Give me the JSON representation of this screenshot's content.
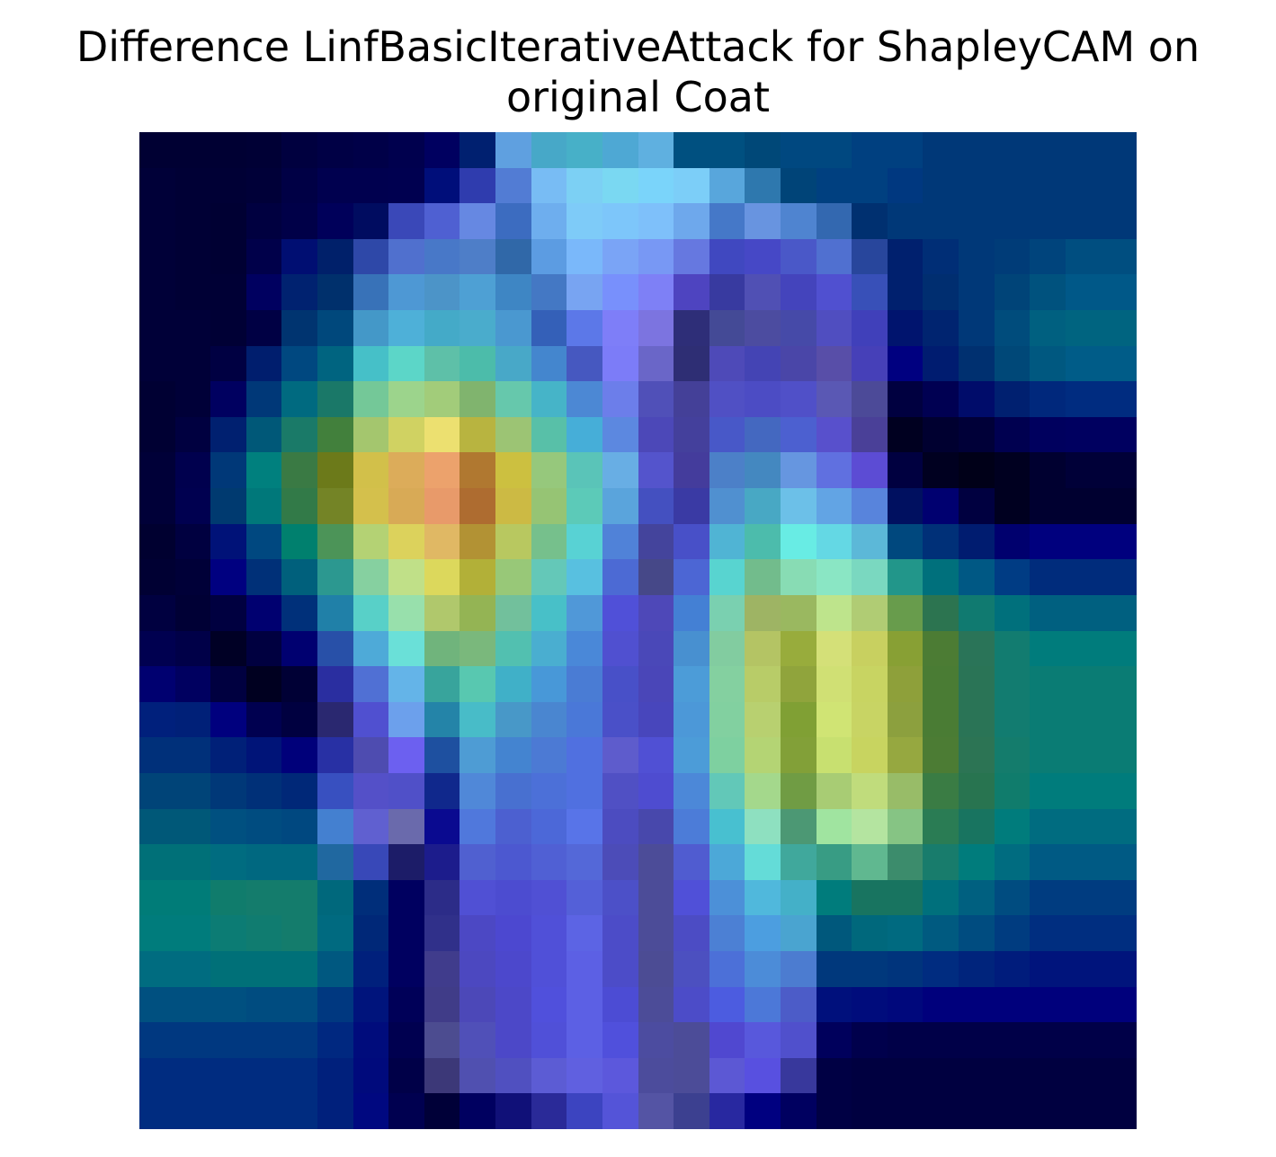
{
  "chart_data": {
    "type": "heatmap",
    "title_lines": [
      "Difference LinfBasicIterativeAttack for ShapleyCAM on",
      "original Coat"
    ],
    "axes_visible": false,
    "rows": 28,
    "cols": 28,
    "cell_colors": [
      [
        "#000033",
        "#000033",
        "#000033",
        "#000035",
        "#00003f",
        "#000045",
        "#000048",
        "#00004e",
        "#000060",
        "#002070",
        "#5fa0e0",
        "#47a8c8",
        "#47b0c8",
        "#4ea8d4",
        "#5fb0e0",
        "#005080",
        "#005080",
        "#004878",
        "#004880",
        "#004880",
        "#004080",
        "#004080",
        "#003878",
        "#003878",
        "#003878",
        "#003878",
        "#003878",
        "#003878"
      ],
      [
        "#000038",
        "#000035",
        "#000035",
        "#000038",
        "#000045",
        "#00004f",
        "#00004f",
        "#000050",
        "#000e7a",
        "#2f3cae",
        "#527cd4",
        "#78bcf4",
        "#7cd0f4",
        "#7ad8f2",
        "#7ad4fa",
        "#7ccef8",
        "#58a6dc",
        "#2e78ae",
        "#004478",
        "#004080",
        "#004080",
        "#003880",
        "#003878",
        "#003878",
        "#003878",
        "#003878",
        "#003878",
        "#003878"
      ],
      [
        "#000038",
        "#000035",
        "#000033",
        "#000040",
        "#000048",
        "#00005a",
        "#000c60",
        "#3a48b8",
        "#4f60d2",
        "#6688e2",
        "#3c6cc0",
        "#6eaeee",
        "#7ecbf8",
        "#7dc6fa",
        "#7ec0fa",
        "#6ea8ec",
        "#4578c8",
        "#6894e0",
        "#4f84d0",
        "#3368b0",
        "#003070",
        "#003878",
        "#003878",
        "#003878",
        "#003878",
        "#003878",
        "#003878",
        "#003878"
      ],
      [
        "#000038",
        "#000035",
        "#000033",
        "#00004a",
        "#000e72",
        "#00206a",
        "#2e48a8",
        "#5070ce",
        "#4878c8",
        "#4e7ec8",
        "#3068a8",
        "#5c9ce2",
        "#7ab8fa",
        "#7aa4f6",
        "#7898f4",
        "#6678e0",
        "#4048c0",
        "#4648c6",
        "#4a58c8",
        "#5070d0",
        "#28469c",
        "#00206e",
        "#002e76",
        "#003878",
        "#003c78",
        "#00447c",
        "#004e80",
        "#004e80"
      ],
      [
        "#000038",
        "#000035",
        "#000035",
        "#000060",
        "#002270",
        "#00306c",
        "#3872b8",
        "#4e98d4",
        "#4c94c8",
        "#4ea0d4",
        "#3e86c4",
        "#4478c4",
        "#78a4f2",
        "#7890fc",
        "#7e80f6",
        "#4e44c0",
        "#383aa0",
        "#5050b4",
        "#4444bc",
        "#5050d0",
        "#3850b8",
        "#00206e",
        "#002e70",
        "#003878",
        "#004478",
        "#00527e",
        "#005888",
        "#005888"
      ],
      [
        "#000038",
        "#000038",
        "#000035",
        "#000044",
        "#003470",
        "#00487c",
        "#4498c8",
        "#4eb0d8",
        "#44aac8",
        "#4aaccc",
        "#4a98d0",
        "#3460b8",
        "#5c78e8",
        "#7e7ef8",
        "#7c74e0",
        "#2e2e78",
        "#444a96",
        "#4c4ca0",
        "#464aa8",
        "#504ec0",
        "#4040ba",
        "#00146e",
        "#002470",
        "#003878",
        "#004c7c",
        "#006080",
        "#006480",
        "#006480"
      ],
      [
        "#000038",
        "#000038",
        "#000042",
        "#001e6e",
        "#004880",
        "#006480",
        "#46c0c8",
        "#5cd6c8",
        "#5ec0a8",
        "#4cbcaa",
        "#48a8c8",
        "#4486ce",
        "#4658c0",
        "#7c7cf8",
        "#6a66c8",
        "#2e2e74",
        "#4e4ab8",
        "#4444b4",
        "#4a46a8",
        "#584ea8",
        "#4640b8",
        "#000080",
        "#001c70",
        "#003070",
        "#004878",
        "#005880",
        "#005c88",
        "#005c88"
      ],
      [
        "#000033",
        "#000038",
        "#000060",
        "#003878",
        "#006a80",
        "#1a7868",
        "#74c898",
        "#9cd48c",
        "#a2cc7a",
        "#80b46e",
        "#66c8ac",
        "#46b4c8",
        "#4c88d4",
        "#6c7eea",
        "#5050b8",
        "#444098",
        "#5050c4",
        "#4c4cc4",
        "#5050c8",
        "#5a58b4",
        "#4c4a98",
        "#000040",
        "#000052",
        "#000c6a",
        "#002070",
        "#00287c",
        "#002c80",
        "#002c80"
      ],
      [
        "#000033",
        "#000040",
        "#002070",
        "#005878",
        "#1a7a68",
        "#42803c",
        "#a4c66e",
        "#d0d262",
        "#ece070",
        "#b8b440",
        "#9cc474",
        "#58c0a8",
        "#46aed8",
        "#5c88e0",
        "#4c48b8",
        "#44409c",
        "#4858c8",
        "#4468c0",
        "#4c60d0",
        "#5850cc",
        "#4a4098",
        "#000020",
        "#000030",
        "#000038",
        "#000050",
        "#00005e",
        "#000060",
        "#000060"
      ],
      [
        "#000038",
        "#00004e",
        "#003878",
        "#00807e",
        "#3a7a44",
        "#6c7a1a",
        "#d2c04a",
        "#dcac5a",
        "#eca26c",
        "#b07830",
        "#ccc040",
        "#96c87c",
        "#5ac4b8",
        "#68aee4",
        "#5454cc",
        "#443c9c",
        "#4c80c8",
        "#4488c0",
        "#6696e0",
        "#6070e0",
        "#5c4cd4",
        "#000040",
        "#000020",
        "#000018",
        "#000020",
        "#000030",
        "#000038",
        "#000038"
      ],
      [
        "#000038",
        "#000050",
        "#003a70",
        "#00787a",
        "#327a48",
        "#748426",
        "#d4c04c",
        "#d8aa56",
        "#e89a6a",
        "#ae6c30",
        "#ccba44",
        "#96c474",
        "#5ccab8",
        "#5aa4dc",
        "#4450c0",
        "#3a3aa4",
        "#5090d0",
        "#48a8c4",
        "#6cc0e8",
        "#62a4e4",
        "#5884dc",
        "#001060",
        "#000070",
        "#000040",
        "#000020",
        "#000030",
        "#000030",
        "#000030"
      ],
      [
        "#000030",
        "#000040",
        "#001278",
        "#004880",
        "#00806e",
        "#4c9458",
        "#b4d274",
        "#dcd25c",
        "#e0b864",
        "#b29234",
        "#b8c860",
        "#76c08c",
        "#58d2d4",
        "#5082d8",
        "#44449c",
        "#4850c8",
        "#50b4d4",
        "#4cbcac",
        "#68ece4",
        "#64d8e4",
        "#5cb8d8",
        "#00487e",
        "#003078",
        "#001c70",
        "#00006e",
        "#00007e",
        "#00007e",
        "#00007e"
      ],
      [
        "#000033",
        "#000038",
        "#000080",
        "#003078",
        "#00607c",
        "#2c9890",
        "#86d0a0",
        "#c0e088",
        "#dcd85c",
        "#b2b038",
        "#98c878",
        "#64c8b8",
        "#58c0e0",
        "#4c6ad4",
        "#464888",
        "#4c66d4",
        "#58d4d0",
        "#72bc8c",
        "#88dcb4",
        "#8ae6c4",
        "#7ad8c0",
        "#22968a",
        "#00707c",
        "#005884",
        "#003c84",
        "#002c7c",
        "#002c7c",
        "#002c7c"
      ],
      [
        "#000040",
        "#000035",
        "#000040",
        "#000070",
        "#00307a",
        "#2080a8",
        "#58d0c8",
        "#98e0ac",
        "#b0c86c",
        "#94b454",
        "#72c09c",
        "#48c0c8",
        "#5098d8",
        "#5050d8",
        "#4e48b8",
        "#4480d4",
        "#7ad0b0",
        "#9eb464",
        "#9ab860",
        "#bee48c",
        "#b0cc74",
        "#689c4c",
        "#2c7450",
        "#107a70",
        "#00707c",
        "#006080",
        "#006080",
        "#006080"
      ],
      [
        "#000050",
        "#000048",
        "#000025",
        "#000040",
        "#000070",
        "#2850a8",
        "#4eaad8",
        "#6ae0d8",
        "#70b47c",
        "#7ab87c",
        "#52c0b0",
        "#4aaed0",
        "#4a88d8",
        "#5050d0",
        "#4a48b8",
        "#4890d0",
        "#82cca0",
        "#b4c464",
        "#98ac3c",
        "#d4e078",
        "#c8d060",
        "#88a034",
        "#4c7c34",
        "#2a7458",
        "#127c70",
        "#007c7c",
        "#007c7c",
        "#007c7c"
      ],
      [
        "#000070",
        "#000060",
        "#000040",
        "#000020",
        "#000035",
        "#2a2ea0",
        "#5070d4",
        "#64b4e8",
        "#38a49c",
        "#58c8b0",
        "#40b0c8",
        "#4898d8",
        "#4a7cd4",
        "#4850c8",
        "#4a46b8",
        "#4c9cd8",
        "#84d0a0",
        "#b8cc68",
        "#90a43c",
        "#d0e074",
        "#c8d462",
        "#8ea03a",
        "#4a7c34",
        "#2a7456",
        "#127c70",
        "#0a7c74",
        "#0a7c74",
        "#0a7c74"
      ],
      [
        "#00207c",
        "#002078",
        "#00007e",
        "#000050",
        "#000040",
        "#2a2870",
        "#5050d0",
        "#6ca0ec",
        "#2484a8",
        "#48bcc8",
        "#4898c8",
        "#4a86d0",
        "#4a78d8",
        "#4a50c8",
        "#4846bc",
        "#4c98d8",
        "#82d0a0",
        "#b8d070",
        "#80a034",
        "#d0e474",
        "#c8d464",
        "#8ca03e",
        "#4a7c34",
        "#2a7456",
        "#127c70",
        "#0a7c74",
        "#0a7c74",
        "#0a7c74"
      ],
      [
        "#00307a",
        "#00307a",
        "#002078",
        "#001478",
        "#00007a",
        "#2830a4",
        "#4e4cb0",
        "#6c60f0",
        "#1e50a0",
        "#4e9cd4",
        "#4484d0",
        "#4c7ad4",
        "#5070e0",
        "#5e5ccc",
        "#5050d4",
        "#4c9cd8",
        "#7ed0a0",
        "#b4d474",
        "#82a038",
        "#c8e070",
        "#c8d460",
        "#96a840",
        "#4c7c34",
        "#2c7454",
        "#147c6c",
        "#0a7c74",
        "#0a7c74",
        "#0a7c74"
      ],
      [
        "#004478",
        "#004478",
        "#003878",
        "#003078",
        "#002878",
        "#3850c0",
        "#5450c8",
        "#5050c8",
        "#10288c",
        "#5088d8",
        "#4870d0",
        "#4c70d8",
        "#5070e0",
        "#5050c4",
        "#4e4cd0",
        "#4c88d8",
        "#62c8b8",
        "#a4d88c",
        "#709c44",
        "#a8cc74",
        "#c0dc7c",
        "#98bc68",
        "#3a7c44",
        "#287450",
        "#107c6c",
        "#007c7c",
        "#007c7c",
        "#007c7c"
      ],
      [
        "#005878",
        "#005878",
        "#005080",
        "#004c80",
        "#004880",
        "#4480d0",
        "#6060d0",
        "#6a6aac",
        "#0a0a90",
        "#5078dc",
        "#4c60d0",
        "#4c68d8",
        "#5874e8",
        "#4c4cc0",
        "#4848ac",
        "#4c7cd8",
        "#48c0d0",
        "#8ee0c0",
        "#4c9874",
        "#a0e4a0",
        "#b4e4a0",
        "#86c484",
        "#2a7c54",
        "#187460",
        "#007c7c",
        "#006c80",
        "#006c80",
        "#006c80"
      ],
      [
        "#007078",
        "#007078",
        "#006c80",
        "#006880",
        "#006880",
        "#2068a0",
        "#3848b8",
        "#1c1c68",
        "#1c1c8c",
        "#5060d0",
        "#4c58d0",
        "#5060d4",
        "#5468d8",
        "#4c4cb8",
        "#4c4c98",
        "#505cd0",
        "#4ca8d8",
        "#64dcd8",
        "#40a89c",
        "#389c84",
        "#60b890",
        "#3c8c6c",
        "#187c6c",
        "#007c7c",
        "#006c80",
        "#005a84",
        "#005a84",
        "#005a84"
      ],
      [
        "#007c78",
        "#007c78",
        "#107c6c",
        "#147c6c",
        "#147c6c",
        "#00687c",
        "#002e7a",
        "#000060",
        "#2c2c88",
        "#5050d4",
        "#4c4cd0",
        "#5050d4",
        "#5460d8",
        "#4c50c8",
        "#4c4c98",
        "#5050d8",
        "#4c90d8",
        "#50b8dc",
        "#44b0c8",
        "#007c7c",
        "#187460",
        "#187460",
        "#00707c",
        "#006080",
        "#004c80",
        "#003c80",
        "#003c80",
        "#003c80"
      ],
      [
        "#007c7c",
        "#007c7c",
        "#0c7c74",
        "#107c70",
        "#147c6c",
        "#006a80",
        "#002878",
        "#000060",
        "#30308a",
        "#4c48c4",
        "#4c48d0",
        "#5050d8",
        "#5c64e4",
        "#4c4cc8",
        "#4c4c98",
        "#4c4cc4",
        "#4c80d4",
        "#4c9ee0",
        "#4aa4d0",
        "#00587c",
        "#00687c",
        "#006a80",
        "#005a80",
        "#004c80",
        "#003c80",
        "#002e80",
        "#002e80",
        "#002e80"
      ],
      [
        "#006c80",
        "#006c80",
        "#007078",
        "#007078",
        "#007078",
        "#005880",
        "#00207c",
        "#000060",
        "#403c8c",
        "#4c48c0",
        "#4c48cc",
        "#5050d8",
        "#5c60e4",
        "#4c4cc8",
        "#4c4c94",
        "#4c50c0",
        "#4c70d8",
        "#4c8cd8",
        "#4c7cd0",
        "#00387c",
        "#00387c",
        "#00347c",
        "#002c80",
        "#00247c",
        "#001c7c",
        "#00147c",
        "#00147c",
        "#00147c"
      ],
      [
        "#005080",
        "#005080",
        "#005080",
        "#004c80",
        "#004c80",
        "#003880",
        "#00147c",
        "#000058",
        "#403c88",
        "#4c48b8",
        "#4c48c8",
        "#5050dc",
        "#5c60e4",
        "#4c4cd4",
        "#4c4c98",
        "#4c4cc8",
        "#4c5ce0",
        "#4c78d8",
        "#4c5cc8",
        "#00107c",
        "#000c7c",
        "#00087c",
        "#00007c",
        "#00007c",
        "#00007c",
        "#00007c",
        "#00007c",
        "#00007c"
      ],
      [
        "#003880",
        "#003880",
        "#003880",
        "#003880",
        "#003880",
        "#002880",
        "#000c7c",
        "#000050",
        "#4c4c90",
        "#5050b8",
        "#4c48c8",
        "#5050d8",
        "#5c60e4",
        "#5050dc",
        "#4c4ca0",
        "#4c4c98",
        "#5048d0",
        "#5858dc",
        "#5050cc",
        "#00005c",
        "#00004c",
        "#000048",
        "#000048",
        "#000048",
        "#000048",
        "#000048",
        "#000048",
        "#000048"
      ],
      [
        "#002c80",
        "#002c80",
        "#002c80",
        "#002c80",
        "#002c80",
        "#00207c",
        "#000a7c",
        "#000048",
        "#3c3878",
        "#5050b0",
        "#5050c0",
        "#5c5cd4",
        "#6060e0",
        "#5c58dc",
        "#4c4c9c",
        "#4c4c98",
        "#5c58d4",
        "#5850e0",
        "#38389c",
        "#000044",
        "#000040",
        "#000040",
        "#000040",
        "#000040",
        "#000040",
        "#000040",
        "#000040",
        "#000040"
      ],
      [
        "#002c80",
        "#002c80",
        "#002c80",
        "#002c80",
        "#002c80",
        "#00207c",
        "#000880",
        "#000050",
        "#000038",
        "#000060",
        "#101078",
        "#2a2a98",
        "#3c44c0",
        "#5454d8",
        "#5454a4",
        "#3c4090",
        "#2828a0",
        "#000080",
        "#000060",
        "#000044",
        "#000040",
        "#000040",
        "#000040",
        "#000040",
        "#000040",
        "#000040",
        "#000040",
        "#000040"
      ]
    ]
  }
}
